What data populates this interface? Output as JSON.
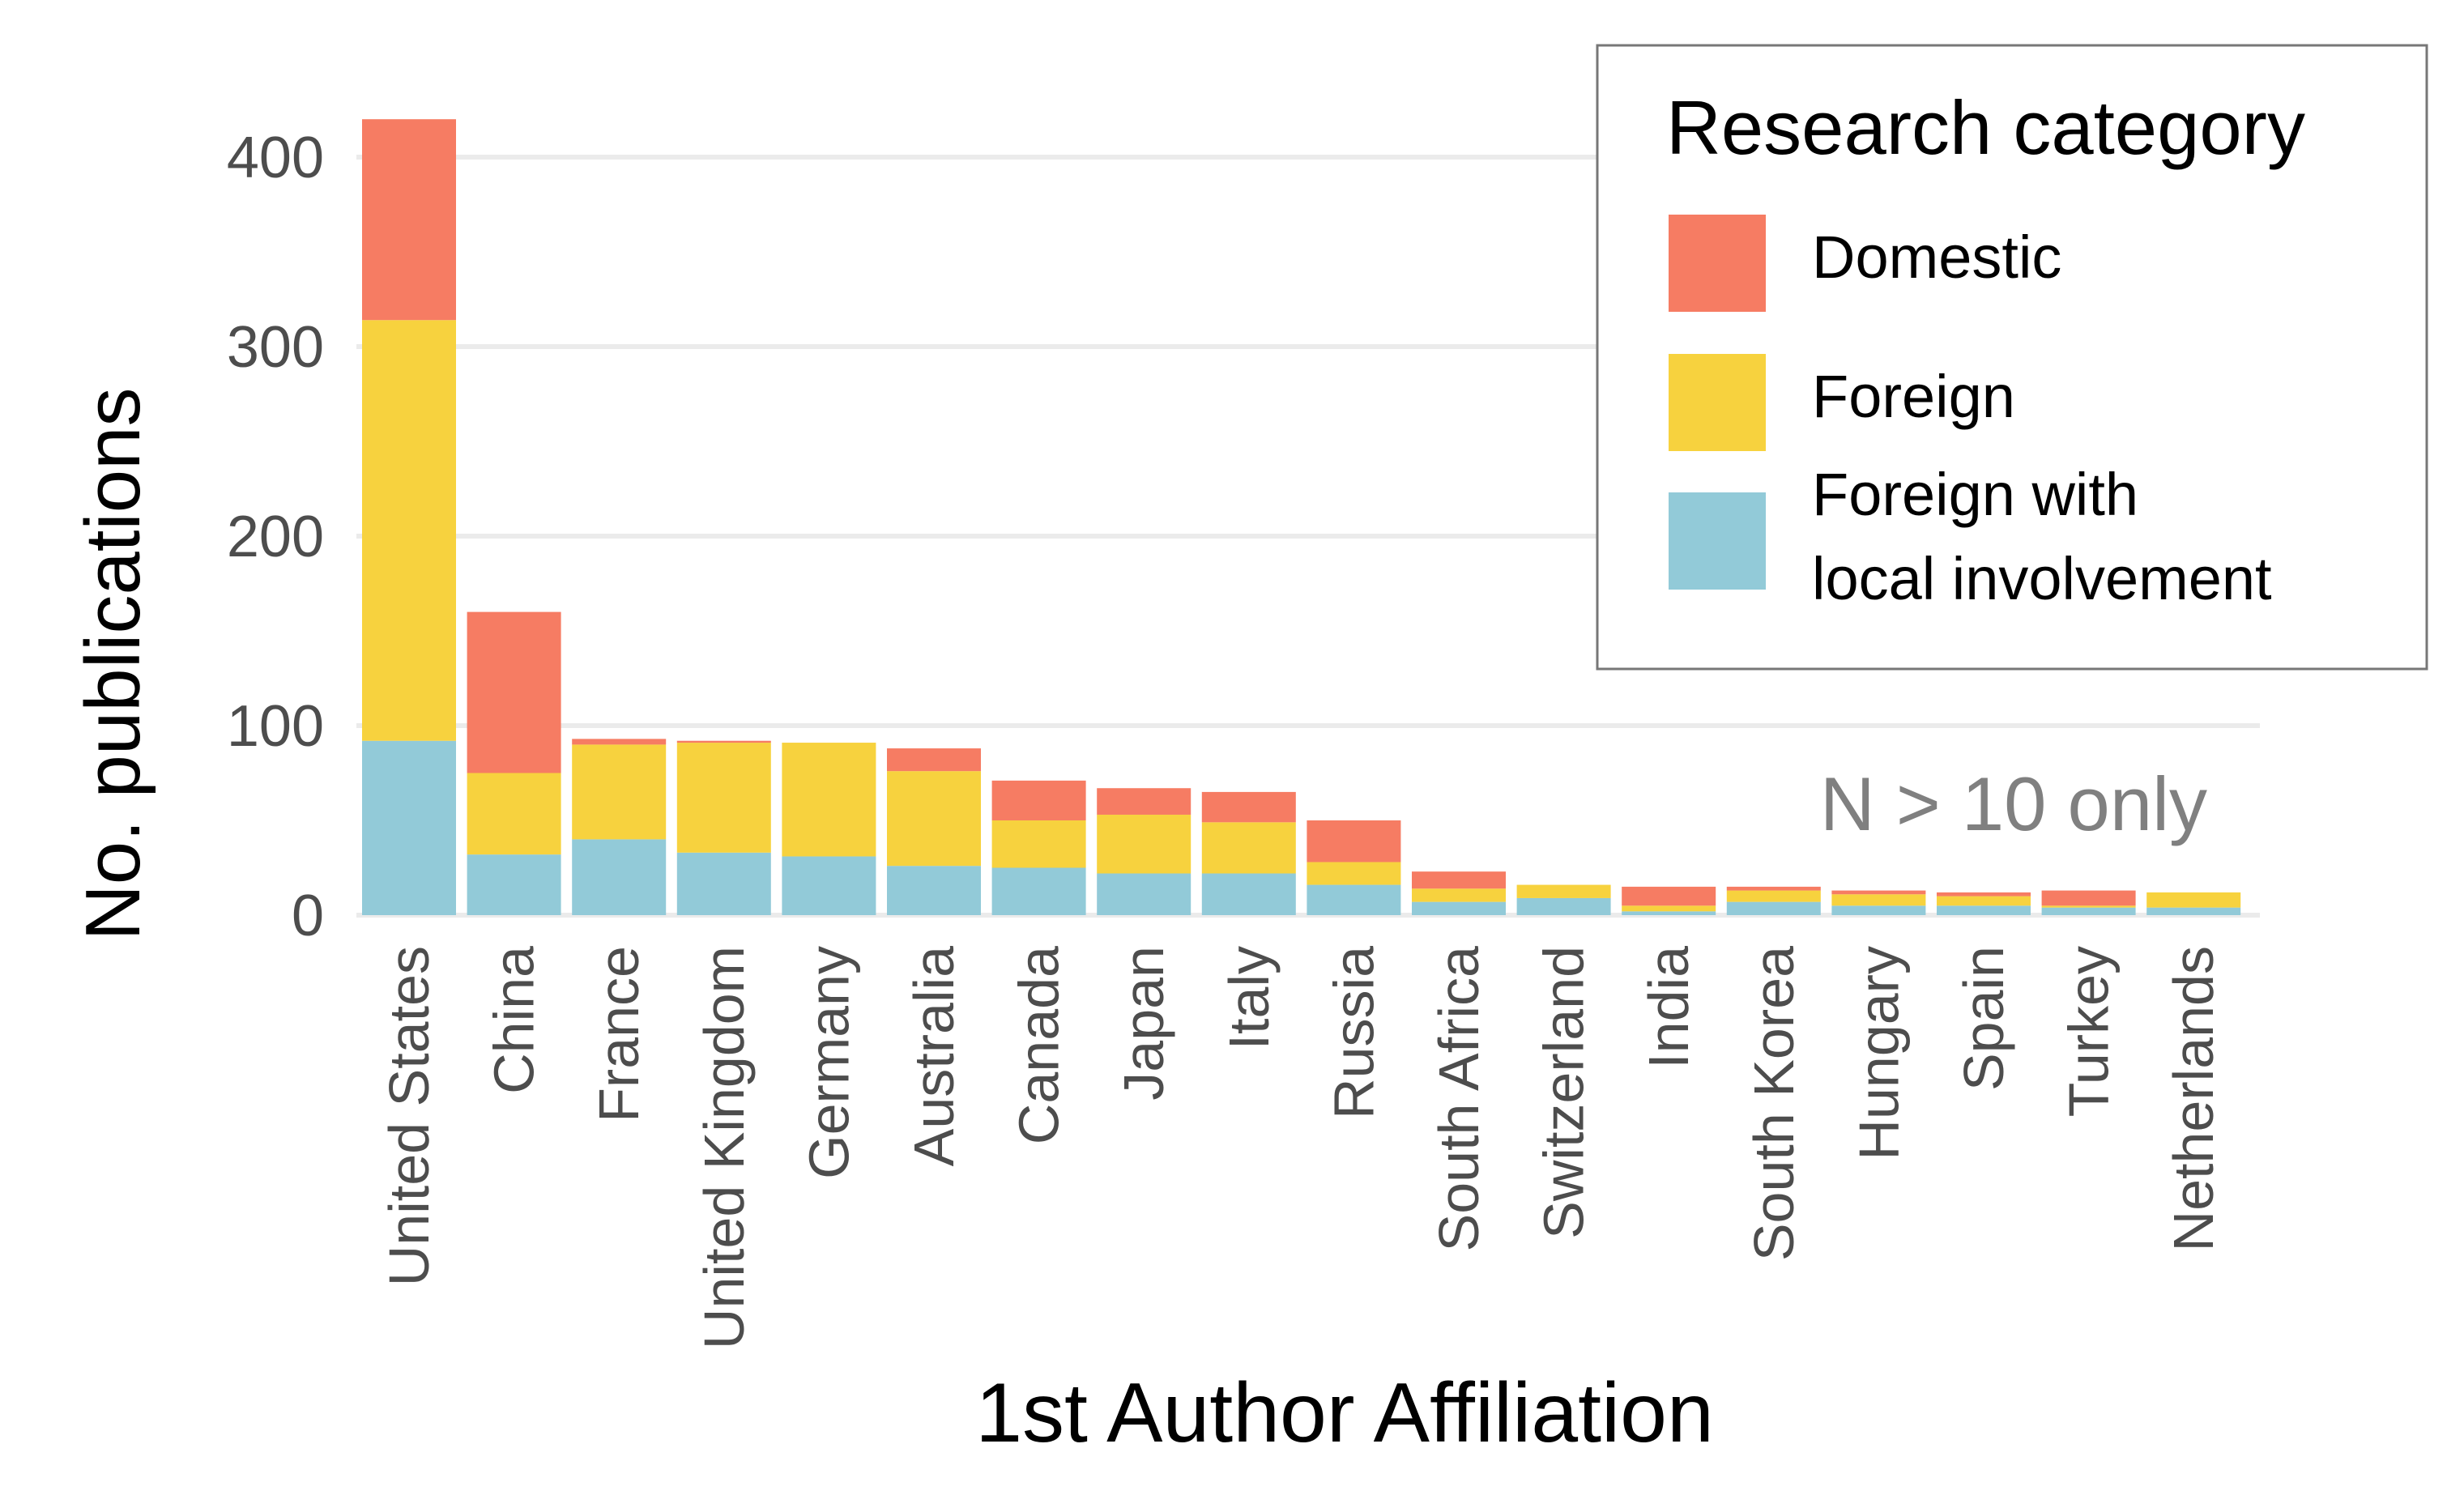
{
  "chart_data": {
    "type": "bar",
    "stacked": true,
    "xlabel": "1st Author Affiliation",
    "ylabel": "No. publications",
    "ylim": [
      0,
      420
    ],
    "yticks": [
      0,
      100,
      200,
      300,
      400
    ],
    "grid": "horizontal",
    "annotation": "N > 10 only",
    "legend": {
      "title": "Research category",
      "placement": "top-right",
      "items": [
        {
          "label": "Domestic",
          "color": "#F67C63"
        },
        {
          "label": "Foreign",
          "color": "#F7D23E"
        },
        {
          "label_lines": [
            "Foreign with",
            "local involvement"
          ],
          "color": "#92CAD8"
        }
      ]
    },
    "categories": [
      "United States",
      "China",
      "France",
      "United Kingdom",
      "Germany",
      "Australia",
      "Canada",
      "Japan",
      "Italy",
      "Russia",
      "South Africa",
      "Switzerland",
      "India",
      "South Korea",
      "Hungary",
      "Spain",
      "Turkey",
      "Netherlands"
    ],
    "series": [
      {
        "name": "Foreign with local involvement",
        "color": "#92CAD8",
        "values": [
          92,
          32,
          40,
          33,
          31,
          26,
          25,
          22,
          22,
          16,
          7,
          9,
          2,
          7,
          5,
          5,
          4,
          4
        ]
      },
      {
        "name": "Foreign",
        "color": "#F7D23E",
        "values": [
          222,
          43,
          50,
          58,
          60,
          50,
          25,
          31,
          27,
          12,
          7,
          7,
          3,
          6,
          6,
          5,
          1,
          8
        ]
      },
      {
        "name": "Domestic",
        "color": "#F67C63",
        "values": [
          106,
          85,
          3,
          1,
          0,
          12,
          21,
          14,
          16,
          22,
          9,
          0,
          10,
          2,
          2,
          2,
          8,
          0
        ]
      }
    ]
  }
}
